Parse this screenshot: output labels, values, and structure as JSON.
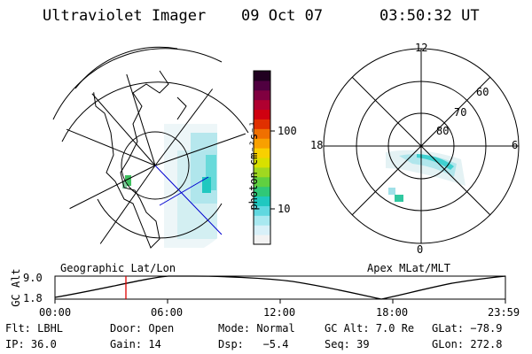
{
  "header": {
    "instrument": "Ultraviolet Imager",
    "date": "09 Oct 07",
    "time": "03:50:32 UT"
  },
  "colorbar": {
    "unit_label": "photon cm⁻²s⁻¹",
    "ticks": [
      "100",
      "10"
    ],
    "colors": [
      "#f2f2f2",
      "#d8f0f8",
      "#a8e8f0",
      "#60d8e0",
      "#20c8c0",
      "#30c878",
      "#60d040",
      "#a0d820",
      "#d8e000",
      "#f8d000",
      "#f8a000",
      "#f07000",
      "#e03000",
      "#d00010",
      "#b00030",
      "#800040",
      "#500040",
      "#200020"
    ]
  },
  "left_map": {
    "caption": "Geographic Lat/Lon"
  },
  "right_map": {
    "caption": "Apex MLat/MLT",
    "mlt_labels": [
      "12",
      "18",
      "6",
      "0"
    ],
    "lat_labels": [
      "60",
      "70",
      "80"
    ]
  },
  "altitude_plot": {
    "ylabel": "GC Alt",
    "yticks": [
      "9.0",
      "1.8"
    ],
    "xticks": [
      "00:00",
      "06:00",
      "12:00",
      "18:00",
      "23:59"
    ],
    "current_time_color": "#e00000"
  },
  "status": {
    "row1": [
      "Flt: LBHL",
      "Door: Open",
      "Mode: Normal",
      "GC Alt: 7.0 Re",
      "GLat: −78.9"
    ],
    "row2": [
      "IP: 36.0",
      "Gain: 14",
      "Dsp:   −5.4",
      "Seq: 39",
      "GLon: 272.8"
    ]
  }
}
